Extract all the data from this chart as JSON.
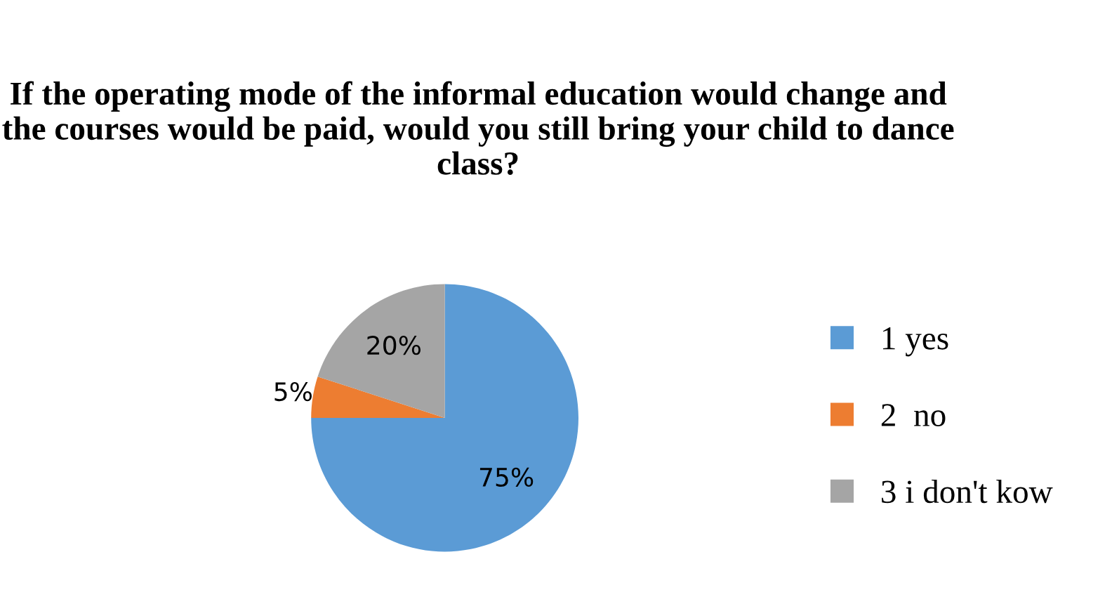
{
  "chart_data": {
    "type": "pie",
    "title": "If the operating mode of the informal education would change and the courses would be paid, would you still bring your child to dance class?",
    "categories": [
      "1 yes",
      "2  no",
      "3 i don't kow"
    ],
    "values": [
      75,
      5,
      20
    ],
    "colors": [
      "#5b9bd5",
      "#ed7d31",
      "#a5a5a5"
    ],
    "value_labels": [
      "75%",
      "5%",
      "20%"
    ],
    "legend": "right"
  }
}
